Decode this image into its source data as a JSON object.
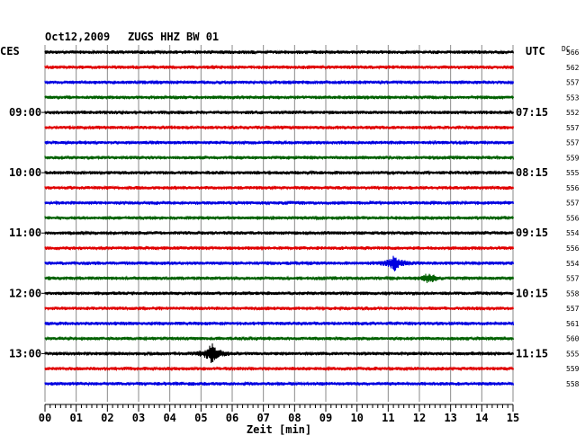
{
  "header": {
    "date": "Oct12,2009",
    "station": "ZUGS HHZ BW 01",
    "left_tz": "CES",
    "right_tz": "UTC",
    "right_col_head": "DC"
  },
  "chart_data": {
    "type": "line",
    "title": "Oct12,2009  ZUGS HHZ BW 01",
    "xlabel": "Zeit [min]",
    "x_ticks": [
      "00",
      "01",
      "02",
      "03",
      "04",
      "05",
      "06",
      "07",
      "08",
      "09",
      "10",
      "11",
      "12",
      "13",
      "14",
      "15"
    ],
    "xlim": [
      0,
      15
    ],
    "row_colors": [
      "#000000",
      "#e00000",
      "#0000e0",
      "#006000"
    ],
    "grid": true,
    "left_hour_labels": [
      {
        "row": 4,
        "label": "09:00"
      },
      {
        "row": 8,
        "label": "10:00"
      },
      {
        "row": 12,
        "label": "11:00"
      },
      {
        "row": 16,
        "label": "12:00"
      },
      {
        "row": 20,
        "label": "13:00"
      }
    ],
    "right_hour_labels": [
      {
        "row": 4,
        "label": "07:15"
      },
      {
        "row": 8,
        "label": "08:15"
      },
      {
        "row": 12,
        "label": "09:15"
      },
      {
        "row": 16,
        "label": "10:15"
      },
      {
        "row": 20,
        "label": "11:15"
      }
    ],
    "dc_offsets": [
      "566",
      "562",
      "557",
      "553",
      "552",
      "557",
      "557",
      "559",
      "555",
      "556",
      "557",
      "556",
      "554",
      "556",
      "554",
      "557",
      "558",
      "557",
      "561",
      "560",
      "555",
      "559",
      "558"
    ],
    "events": [
      {
        "row": 14,
        "minute": 11.2,
        "amplitude": 8
      },
      {
        "row": 15,
        "minute": 12.3,
        "amplitude": 5
      },
      {
        "row": 20,
        "minute": 5.35,
        "amplitude": 11
      }
    ]
  }
}
